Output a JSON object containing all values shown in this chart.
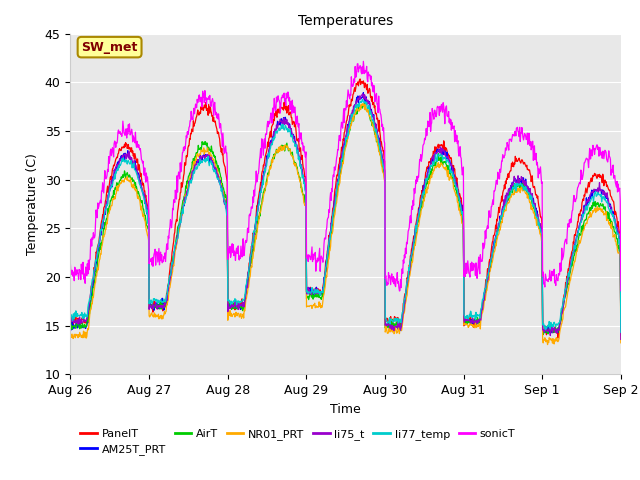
{
  "title": "Temperatures",
  "xlabel": "Time",
  "ylabel": "Temperature (C)",
  "ylim": [
    10,
    45
  ],
  "xlim": [
    0,
    168
  ],
  "x_tick_labels": [
    "Aug 26",
    "Aug 27",
    "Aug 28",
    "Aug 29",
    "Aug 30",
    "Aug 31",
    "Sep 1",
    "Sep 2"
  ],
  "x_tick_positions": [
    0,
    24,
    48,
    72,
    96,
    120,
    144,
    168
  ],
  "y_ticks": [
    10,
    15,
    20,
    25,
    30,
    35,
    40,
    45
  ],
  "series": {
    "PanelT": {
      "color": "#ff0000"
    },
    "AM25T_PRT": {
      "color": "#0000ff"
    },
    "AirT": {
      "color": "#00cc00"
    },
    "NR01_PRT": {
      "color": "#ffaa00"
    },
    "li75_t": {
      "color": "#9900cc"
    },
    "li77_temp": {
      "color": "#00cccc"
    },
    "sonicT": {
      "color": "#ff00ff"
    }
  },
  "annotation_text": "SW_met",
  "annotation_color": "#800000",
  "annotation_bg": "#ffff99",
  "annotation_border": "#aa8800",
  "fig_bg": "#ffffff",
  "plot_bg": "#e8e8e8",
  "grid_color": "#ffffff",
  "title_fontsize": 10,
  "axis_fontsize": 9,
  "legend_fontsize": 8
}
